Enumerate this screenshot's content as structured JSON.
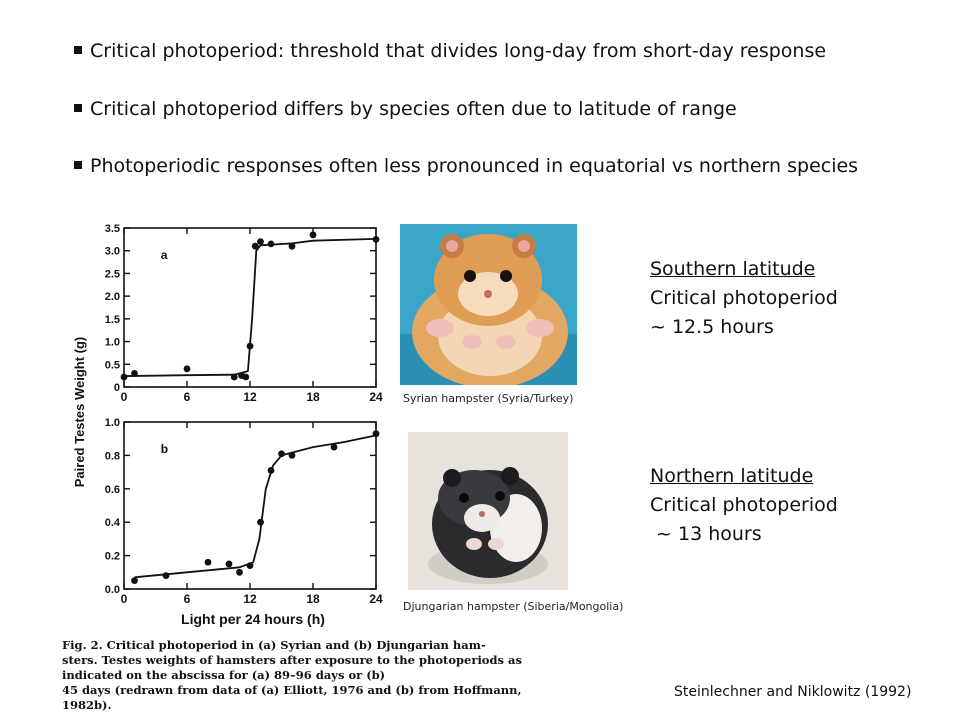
{
  "bullets": [
    "Critical photoperiod:  threshold that divides long-day from short-day response",
    "Critical photoperiod differs by species often due to latitude of range",
    "Photoperiodic responses often less pronounced in equatorial vs northern species"
  ],
  "figure": {
    "ylabel": "Paired Testes Weight (g)",
    "xlabel": "Light per 24 hours (h)",
    "caption": "Fig. 2. Critical photoperiod in (a) Syrian and (b) Djungarian hamsters. Testes weights of hamsters after exposure to the photoperiods as indicated on the abscissa for (a) 89–96 days or (b) 45 days (redrawn from data of (a) Elliott, 1976 and (b) from Hoffmann, 1982b).",
    "caption_lines": [
      "Fig. 2. Critical photoperiod in (a) Syrian and (b) Djungarian ham-",
      "sters. Testes weights of hamsters after exposure to the photoperiods as",
      "indicated on the abscissa for (a) 89–96 days or (b)",
      "45 days (redrawn from data of (a) Elliott, 1976 and (b) from Hoffmann, 1982b)."
    ]
  },
  "chart_data": [
    {
      "type": "scatter",
      "panel_label": "a",
      "xlim": [
        0,
        24
      ],
      "ylim": [
        0,
        3.5
      ],
      "x_ticks": [
        "0",
        "6",
        "12",
        "18",
        "24"
      ],
      "y_ticks": [
        "0",
        "0.5",
        "1.0",
        "1.5",
        "2.0",
        "2.5",
        "3.0",
        "3.5"
      ],
      "points": [
        {
          "x": 0,
          "y": 0.22
        },
        {
          "x": 1,
          "y": 0.3
        },
        {
          "x": 6,
          "y": 0.4
        },
        {
          "x": 10.5,
          "y": 0.22
        },
        {
          "x": 11.2,
          "y": 0.25
        },
        {
          "x": 11.6,
          "y": 0.22
        },
        {
          "x": 12,
          "y": 0.9
        },
        {
          "x": 12.5,
          "y": 3.1
        },
        {
          "x": 13,
          "y": 3.2
        },
        {
          "x": 14,
          "y": 3.15
        },
        {
          "x": 16,
          "y": 3.1
        },
        {
          "x": 18,
          "y": 3.35
        },
        {
          "x": 24,
          "y": 3.25
        }
      ],
      "fit": [
        [
          0,
          0.24
        ],
        [
          6,
          0.26
        ],
        [
          10.5,
          0.27
        ],
        [
          11.8,
          0.35
        ],
        [
          12.2,
          1.5
        ],
        [
          12.6,
          3.0
        ],
        [
          13,
          3.12
        ],
        [
          16,
          3.16
        ],
        [
          18,
          3.22
        ],
        [
          24,
          3.26
        ]
      ]
    },
    {
      "type": "scatter",
      "panel_label": "b",
      "xlim": [
        0,
        24
      ],
      "ylim": [
        0,
        1.0
      ],
      "x_ticks": [
        "0",
        "6",
        "12",
        "18",
        "24"
      ],
      "y_ticks": [
        "0.0",
        "0.2",
        "0.4",
        "0.6",
        "0.8",
        "1.0"
      ],
      "points": [
        {
          "x": 1,
          "y": 0.05
        },
        {
          "x": 4,
          "y": 0.08
        },
        {
          "x": 8,
          "y": 0.16
        },
        {
          "x": 10,
          "y": 0.15
        },
        {
          "x": 11,
          "y": 0.1
        },
        {
          "x": 12,
          "y": 0.14
        },
        {
          "x": 13,
          "y": 0.4
        },
        {
          "x": 14,
          "y": 0.71
        },
        {
          "x": 15,
          "y": 0.81
        },
        {
          "x": 16,
          "y": 0.8
        },
        {
          "x": 20,
          "y": 0.85
        },
        {
          "x": 24,
          "y": 0.93
        }
      ],
      "fit": [
        [
          1,
          0.07
        ],
        [
          6,
          0.1
        ],
        [
          11,
          0.13
        ],
        [
          12.3,
          0.16
        ],
        [
          12.9,
          0.3
        ],
        [
          13.5,
          0.6
        ],
        [
          14.2,
          0.74
        ],
        [
          15,
          0.8
        ],
        [
          18,
          0.85
        ],
        [
          21,
          0.88
        ],
        [
          24,
          0.92
        ]
      ]
    }
  ],
  "photos": {
    "syrian_label": "Syrian hampster  (Syria/Turkey)",
    "djungarian_label": "Djungarian hampster  (Siberia/Mongolia)"
  },
  "south": {
    "heading": "Southern latitude",
    "line1": "Critical photoperiod",
    "line2": "~ 12.5 hours"
  },
  "north": {
    "heading": "Northern latitude",
    "line1": "Critical photoperiod",
    "line2": " ~ 13 hours"
  },
  "citation": "Steinlechner and Niklowitz (1992)",
  "colors": {
    "syrian_fur": "#d9a05a",
    "syrian_background": "#3aa6c8",
    "djungarian_fur": "#2b2b2e",
    "djungarian_background": "#e7e3dc"
  }
}
